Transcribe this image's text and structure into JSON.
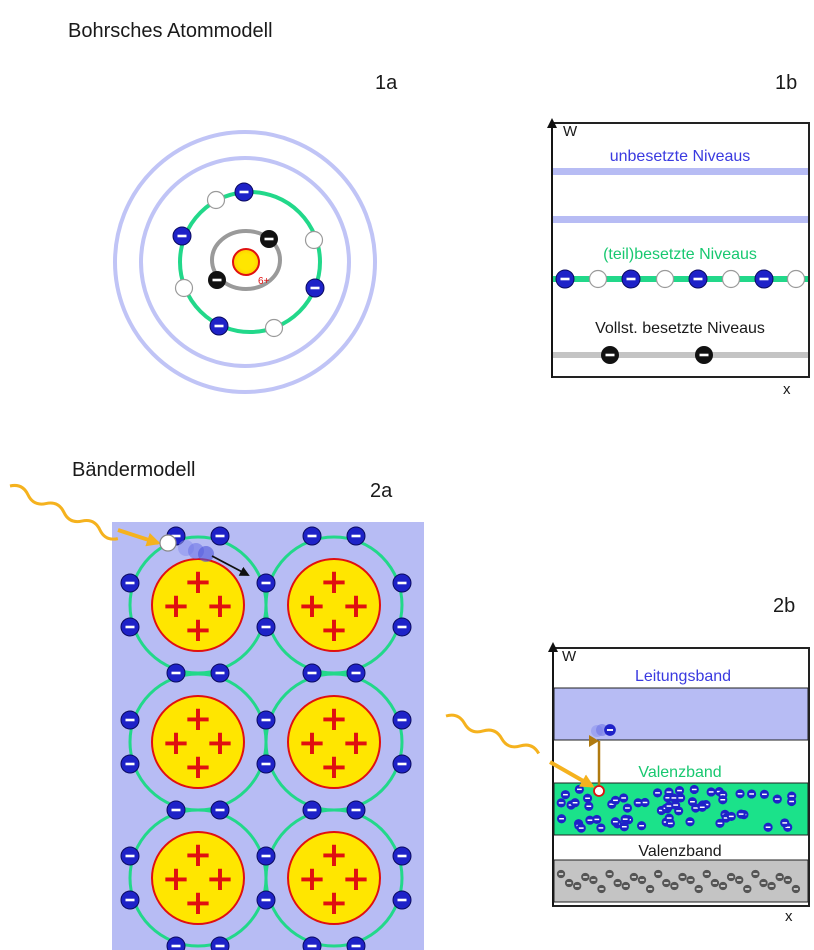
{
  "headings": {
    "bohr": "Bohrsches Atommodell",
    "band": "Bändermodell"
  },
  "panels": {
    "p1a": "1a",
    "p1b": "1b",
    "p2a": "2a",
    "p2b": "2b"
  },
  "atom": {
    "nucleus_charge": "6+",
    "inner_shell_electrons": 2,
    "outer_shell_electrons": 4,
    "outer_shell_holes": 4
  },
  "diagram_1b": {
    "y_axis": "W",
    "x_axis": "x",
    "empty_levels": "unbesetzte Niveaus",
    "partial_levels": "(teil)besetzte Niveaus",
    "full_levels": "Vollst. besetzte Niveaus",
    "partial_pattern": [
      "e",
      "h",
      "e",
      "h",
      "e",
      "h",
      "e",
      "h"
    ],
    "full_electrons": 2
  },
  "diagram_2b": {
    "y_axis": "W",
    "x_axis": "x",
    "conduction_band": "Leitungsband",
    "valence_band": "Valenzband",
    "lower_band": "Valenzband"
  },
  "lattice": {
    "rows": 3,
    "cols": 2,
    "nucleus_symbol": "+"
  },
  "colors": {
    "electron": "#1e22c8",
    "hole": "#ffffff",
    "shell": "#22d88a",
    "band_blue": "#b7bcf4",
    "band_green": "#1be28a",
    "band_gray": "#c4c4c4",
    "nucleus": "#ffe600",
    "nucleus_edge": "#e01010",
    "photon": "#f5b21e",
    "label_blue": "#3a3ae0",
    "label_green": "#18c870"
  }
}
